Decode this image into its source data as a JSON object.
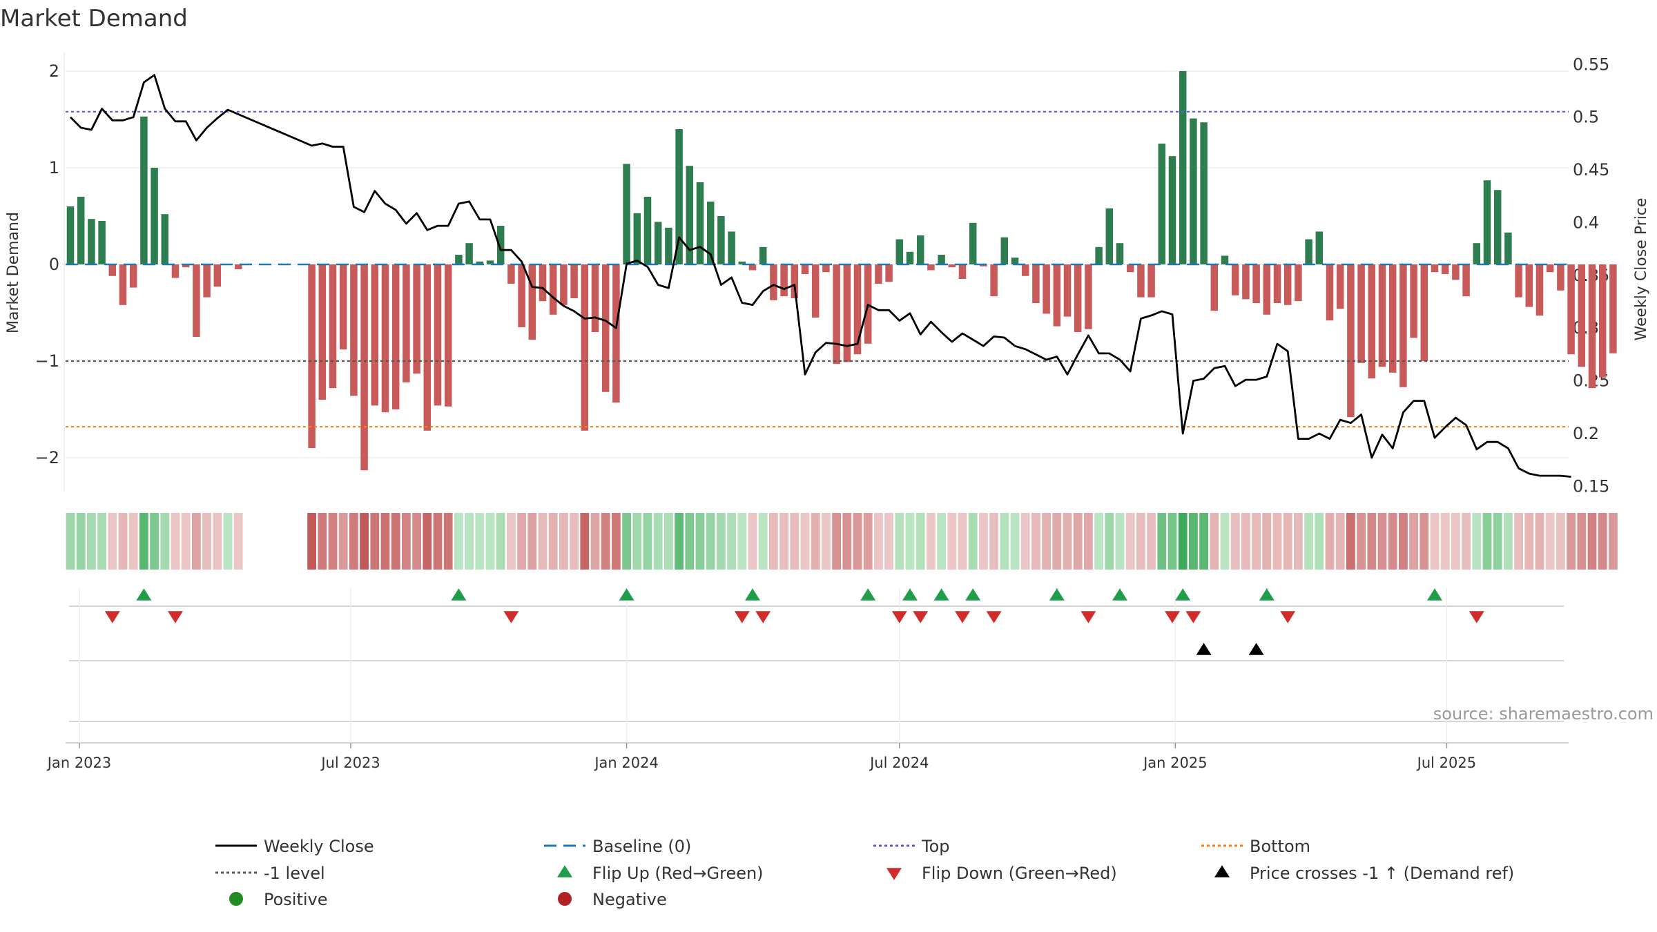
{
  "chart_data": {
    "type": "bar",
    "title": "Market Demand",
    "ylabel": "Market Demand",
    "y2label": "Weekly Close Price",
    "ylim": [
      -2.35,
      2.2
    ],
    "y2lim": [
      0.145,
      0.562
    ],
    "yticks": [
      2,
      1,
      0,
      -1,
      -2
    ],
    "yticklabels": [
      "2",
      "1",
      "0",
      "−1",
      "−2"
    ],
    "y2ticks": [
      0.55,
      0.5,
      0.45,
      0.4,
      0.35,
      0.3,
      0.25,
      0.2,
      0.15
    ],
    "y2ticklabels": [
      "0.55",
      "0.5",
      "0.45",
      "0.4",
      "0.35",
      "0.3",
      "0.25",
      "0.2",
      "0.15"
    ],
    "start_date": "2022-12-26",
    "week_count": 144,
    "xlabels": [
      {
        "date": "2023-01-01",
        "label": "Jan 2023"
      },
      {
        "date": "2023-07-01",
        "label": "Jul 2023"
      },
      {
        "date": "2024-01-01",
        "label": "Jan 2024"
      },
      {
        "date": "2024-07-01",
        "label": "Jul 2024"
      },
      {
        "date": "2025-01-01",
        "label": "Jan 2025"
      },
      {
        "date": "2025-07-01",
        "label": "Jul 2025"
      }
    ],
    "demand": [
      {
        "week": 0,
        "value": 0.6
      },
      {
        "week": 1,
        "value": 0.7
      },
      {
        "week": 2,
        "value": 0.47
      },
      {
        "week": 3,
        "value": 0.45
      },
      {
        "week": 4,
        "value": -0.12
      },
      {
        "week": 5,
        "value": -0.42
      },
      {
        "week": 6,
        "value": -0.24
      },
      {
        "week": 7,
        "value": 1.53
      },
      {
        "week": 8,
        "value": 1.0
      },
      {
        "week": 9,
        "value": 0.52
      },
      {
        "week": 10,
        "value": -0.14
      },
      {
        "week": 11,
        "value": -0.03
      },
      {
        "week": 12,
        "value": -0.75
      },
      {
        "week": 13,
        "value": -0.34
      },
      {
        "week": 14,
        "value": -0.23
      },
      {
        "week": 16,
        "value": -0.05
      },
      {
        "week": 23,
        "value": -1.9
      },
      {
        "week": 24,
        "value": -1.4
      },
      {
        "week": 25,
        "value": -1.28
      },
      {
        "week": 26,
        "value": -0.88
      },
      {
        "week": 27,
        "value": -1.36
      },
      {
        "week": 28,
        "value": -2.13
      },
      {
        "week": 29,
        "value": -1.46
      },
      {
        "week": 30,
        "value": -1.53
      },
      {
        "week": 31,
        "value": -1.5
      },
      {
        "week": 32,
        "value": -1.22
      },
      {
        "week": 33,
        "value": -1.13
      },
      {
        "week": 34,
        "value": -1.72
      },
      {
        "week": 35,
        "value": -1.46
      },
      {
        "week": 36,
        "value": -1.47
      },
      {
        "week": 37,
        "value": 0.1
      },
      {
        "week": 38,
        "value": 0.22
      },
      {
        "week": 39,
        "value": 0.03
      },
      {
        "week": 40,
        "value": 0.04
      },
      {
        "week": 41,
        "value": 0.4
      },
      {
        "week": 42,
        "value": -0.2
      },
      {
        "week": 43,
        "value": -0.65
      },
      {
        "week": 44,
        "value": -0.78
      },
      {
        "week": 45,
        "value": -0.38
      },
      {
        "week": 46,
        "value": -0.52
      },
      {
        "week": 47,
        "value": -0.42
      },
      {
        "week": 48,
        "value": -0.35
      },
      {
        "week": 49,
        "value": -1.72
      },
      {
        "week": 50,
        "value": -0.7
      },
      {
        "week": 51,
        "value": -1.32
      },
      {
        "week": 52,
        "value": -1.43
      },
      {
        "week": 53,
        "value": 1.04
      },
      {
        "week": 54,
        "value": 0.53
      },
      {
        "week": 55,
        "value": 0.7
      },
      {
        "week": 56,
        "value": 0.44
      },
      {
        "week": 57,
        "value": 0.38
      },
      {
        "week": 58,
        "value": 1.4
      },
      {
        "week": 59,
        "value": 1.02
      },
      {
        "week": 60,
        "value": 0.85
      },
      {
        "week": 61,
        "value": 0.65
      },
      {
        "week": 62,
        "value": 0.5
      },
      {
        "week": 63,
        "value": 0.34
      },
      {
        "week": 64,
        "value": 0.03
      },
      {
        "week": 65,
        "value": -0.06
      },
      {
        "week": 66,
        "value": 0.18
      },
      {
        "week": 67,
        "value": -0.37
      },
      {
        "week": 68,
        "value": -0.33
      },
      {
        "week": 69,
        "value": -0.35
      },
      {
        "week": 70,
        "value": -0.1
      },
      {
        "week": 71,
        "value": -0.55
      },
      {
        "week": 72,
        "value": -0.08
      },
      {
        "week": 73,
        "value": -1.03
      },
      {
        "week": 74,
        "value": -1.01
      },
      {
        "week": 75,
        "value": -0.93
      },
      {
        "week": 76,
        "value": -0.82
      },
      {
        "week": 77,
        "value": -0.2
      },
      {
        "week": 78,
        "value": -0.18
      },
      {
        "week": 79,
        "value": 0.26
      },
      {
        "week": 80,
        "value": 0.13
      },
      {
        "week": 81,
        "value": 0.3
      },
      {
        "week": 82,
        "value": -0.06
      },
      {
        "week": 83,
        "value": 0.1
      },
      {
        "week": 84,
        "value": -0.03
      },
      {
        "week": 85,
        "value": -0.15
      },
      {
        "week": 86,
        "value": 0.43
      },
      {
        "week": 87,
        "value": -0.02
      },
      {
        "week": 88,
        "value": -0.33
      },
      {
        "week": 89,
        "value": 0.28
      },
      {
        "week": 90,
        "value": 0.07
      },
      {
        "week": 91,
        "value": -0.12
      },
      {
        "week": 92,
        "value": -0.4
      },
      {
        "week": 93,
        "value": -0.51
      },
      {
        "week": 94,
        "value": -0.64
      },
      {
        "week": 95,
        "value": -0.54
      },
      {
        "week": 96,
        "value": -0.7
      },
      {
        "week": 97,
        "value": -0.67
      },
      {
        "week": 98,
        "value": 0.18
      },
      {
        "week": 99,
        "value": 0.58
      },
      {
        "week": 100,
        "value": 0.22
      },
      {
        "week": 101,
        "value": -0.08
      },
      {
        "week": 102,
        "value": -0.34
      },
      {
        "week": 103,
        "value": -0.34
      },
      {
        "week": 104,
        "value": 1.25
      },
      {
        "week": 105,
        "value": 1.12
      },
      {
        "week": 106,
        "value": 2.0
      },
      {
        "week": 107,
        "value": 1.51
      },
      {
        "week": 108,
        "value": 1.47
      },
      {
        "week": 109,
        "value": -0.48
      },
      {
        "week": 110,
        "value": 0.09
      },
      {
        "week": 111,
        "value": -0.32
      },
      {
        "week": 112,
        "value": -0.36
      },
      {
        "week": 113,
        "value": -0.4
      },
      {
        "week": 114,
        "value": -0.52
      },
      {
        "week": 115,
        "value": -0.4
      },
      {
        "week": 116,
        "value": -0.42
      },
      {
        "week": 117,
        "value": -0.38
      },
      {
        "week": 118,
        "value": 0.26
      },
      {
        "week": 119,
        "value": 0.34
      },
      {
        "week": 120,
        "value": -0.58
      },
      {
        "week": 121,
        "value": -0.46
      },
      {
        "week": 122,
        "value": -1.58
      },
      {
        "week": 123,
        "value": -1.02
      },
      {
        "week": 124,
        "value": -1.18
      },
      {
        "week": 125,
        "value": -1.06
      },
      {
        "week": 126,
        "value": -1.12
      },
      {
        "week": 127,
        "value": -1.27
      },
      {
        "week": 128,
        "value": -0.76
      },
      {
        "week": 129,
        "value": -1.0
      },
      {
        "week": 130,
        "value": -0.08
      },
      {
        "week": 131,
        "value": -0.1
      },
      {
        "week": 132,
        "value": -0.16
      },
      {
        "week": 133,
        "value": -0.33
      },
      {
        "week": 134,
        "value": 0.22
      },
      {
        "week": 135,
        "value": 0.87
      },
      {
        "week": 136,
        "value": 0.77
      },
      {
        "week": 137,
        "value": 0.33
      },
      {
        "week": 138,
        "value": -0.34
      },
      {
        "week": 139,
        "value": -0.44
      },
      {
        "week": 140,
        "value": -0.53
      },
      {
        "week": 141,
        "value": -0.08
      },
      {
        "week": 142,
        "value": -0.27
      },
      {
        "week": 143,
        "value": -0.93
      }
    ],
    "extra_bars": [
      {
        "week": 144,
        "value": -1.06
      },
      {
        "week": 145,
        "value": -1.28
      },
      {
        "week": 146,
        "value": -1.17
      },
      {
        "week": 147,
        "value": -0.92
      }
    ],
    "close": [
      [
        0,
        0.5
      ],
      [
        1,
        0.49
      ],
      [
        2,
        0.488
      ],
      [
        3,
        0.508
      ],
      [
        4,
        0.497
      ],
      [
        5,
        0.497
      ],
      [
        6,
        0.5
      ],
      [
        7,
        0.533
      ],
      [
        8,
        0.54
      ],
      [
        9,
        0.508
      ],
      [
        10,
        0.496
      ],
      [
        11,
        0.496
      ],
      [
        12,
        0.478
      ],
      [
        13,
        0.49
      ],
      [
        14,
        0.499
      ],
      [
        15,
        0.507
      ],
      [
        23,
        0.473
      ],
      [
        24,
        0.475
      ],
      [
        25,
        0.472
      ],
      [
        26,
        0.472
      ],
      [
        27,
        0.415
      ],
      [
        28,
        0.41
      ],
      [
        29,
        0.43
      ],
      [
        30,
        0.418
      ],
      [
        31,
        0.412
      ],
      [
        32,
        0.399
      ],
      [
        33,
        0.409
      ],
      [
        34,
        0.393
      ],
      [
        35,
        0.397
      ],
      [
        36,
        0.397
      ],
      [
        37,
        0.418
      ],
      [
        38,
        0.42
      ],
      [
        39,
        0.403
      ],
      [
        40,
        0.403
      ],
      [
        41,
        0.374
      ],
      [
        42,
        0.374
      ],
      [
        43,
        0.363
      ],
      [
        44,
        0.339
      ],
      [
        45,
        0.338
      ],
      [
        46,
        0.329
      ],
      [
        47,
        0.321
      ],
      [
        48,
        0.316
      ],
      [
        49,
        0.309
      ],
      [
        50,
        0.31
      ],
      [
        51,
        0.307
      ],
      [
        52,
        0.3
      ],
      [
        53,
        0.361
      ],
      [
        54,
        0.364
      ],
      [
        55,
        0.358
      ],
      [
        56,
        0.341
      ],
      [
        57,
        0.338
      ],
      [
        58,
        0.386
      ],
      [
        59,
        0.374
      ],
      [
        60,
        0.377
      ],
      [
        61,
        0.37
      ],
      [
        62,
        0.341
      ],
      [
        63,
        0.348
      ],
      [
        64,
        0.324
      ],
      [
        65,
        0.322
      ],
      [
        66,
        0.335
      ],
      [
        67,
        0.341
      ],
      [
        68,
        0.337
      ],
      [
        69,
        0.341
      ],
      [
        70,
        0.256
      ],
      [
        71,
        0.277
      ],
      [
        72,
        0.286
      ],
      [
        73,
        0.285
      ],
      [
        74,
        0.283
      ],
      [
        75,
        0.285
      ],
      [
        76,
        0.322
      ],
      [
        77,
        0.317
      ],
      [
        78,
        0.317
      ],
      [
        79,
        0.307
      ],
      [
        80,
        0.314
      ],
      [
        81,
        0.294
      ],
      [
        82,
        0.306
      ],
      [
        83,
        0.296
      ],
      [
        84,
        0.287
      ],
      [
        85,
        0.295
      ],
      [
        86,
        0.289
      ],
      [
        87,
        0.283
      ],
      [
        88,
        0.292
      ],
      [
        89,
        0.291
      ],
      [
        90,
        0.283
      ],
      [
        91,
        0.28
      ],
      [
        92,
        0.275
      ],
      [
        93,
        0.27
      ],
      [
        94,
        0.273
      ],
      [
        95,
        0.256
      ],
      [
        96,
        0.275
      ],
      [
        97,
        0.293
      ],
      [
        98,
        0.276
      ],
      [
        99,
        0.276
      ],
      [
        100,
        0.27
      ],
      [
        101,
        0.259
      ],
      [
        102,
        0.309
      ],
      [
        103,
        0.312
      ],
      [
        104,
        0.316
      ],
      [
        105,
        0.313
      ],
      [
        106,
        0.2
      ],
      [
        107,
        0.25
      ],
      [
        108,
        0.252
      ],
      [
        109,
        0.262
      ],
      [
        110,
        0.264
      ],
      [
        111,
        0.245
      ],
      [
        112,
        0.251
      ],
      [
        113,
        0.251
      ],
      [
        114,
        0.254
      ],
      [
        115,
        0.285
      ],
      [
        116,
        0.278
      ],
      [
        117,
        0.195
      ],
      [
        118,
        0.195
      ],
      [
        119,
        0.2
      ],
      [
        120,
        0.195
      ],
      [
        121,
        0.213
      ],
      [
        122,
        0.21
      ],
      [
        123,
        0.218
      ],
      [
        124,
        0.177
      ],
      [
        125,
        0.199
      ],
      [
        126,
        0.186
      ],
      [
        127,
        0.22
      ],
      [
        128,
        0.231
      ],
      [
        129,
        0.231
      ],
      [
        130,
        0.196
      ],
      [
        131,
        0.206
      ],
      [
        132,
        0.215
      ],
      [
        133,
        0.208
      ],
      [
        134,
        0.185
      ],
      [
        135,
        0.192
      ],
      [
        136,
        0.192
      ],
      [
        137,
        0.186
      ],
      [
        138,
        0.167
      ],
      [
        139,
        0.162
      ],
      [
        140,
        0.16
      ],
      [
        141,
        0.16
      ],
      [
        142,
        0.16
      ],
      [
        143,
        0.159
      ]
    ],
    "heatmap_gap": [
      17,
      22
    ],
    "flip_up_weeks": [
      7,
      37,
      53,
      65,
      76,
      80,
      83,
      86,
      94,
      100,
      106,
      114,
      130
    ],
    "flip_down_weeks": [
      4,
      10,
      42,
      64,
      66,
      79,
      81,
      85,
      88,
      97,
      105,
      107,
      116,
      134
    ],
    "cross_weeks": [
      108,
      113
    ],
    "reference_lines": [
      {
        "name": "Top",
        "value": 1.58,
        "color": "#5b5bd6"
      },
      {
        "name": "Bottom",
        "value": -1.68,
        "color": "#ff7f0e"
      },
      {
        "name": "-1 level",
        "value": -1.0,
        "color": "#555555"
      },
      {
        "name": "Baseline (0)",
        "value": 0.0,
        "color": "#1f77b4"
      }
    ],
    "colors": {
      "positive_bar": "#2e7d4f",
      "negative_bar": "#c85a5a",
      "flip_up": "#1f9d4a",
      "flip_down": "#d22b2b",
      "cross": "#000000",
      "positive_dot": "#228b22",
      "negative_dot": "#b22222",
      "close_line": "#000000"
    },
    "legend": [
      {
        "key": "close",
        "label": "Weekly Close"
      },
      {
        "key": "baseline",
        "label": "Baseline (0)"
      },
      {
        "key": "top",
        "label": "Top"
      },
      {
        "key": "bottom",
        "label": "Bottom"
      },
      {
        "key": "minus1",
        "label": "-1 level"
      },
      {
        "key": "flip_up",
        "label": "Flip Up (Red→Green)"
      },
      {
        "key": "flip_down",
        "label": "Flip Down (Green→Red)"
      },
      {
        "key": "cross",
        "label": "Price crosses -1 ↑ (Demand ref)"
      },
      {
        "key": "positive",
        "label": "Positive"
      },
      {
        "key": "negative",
        "label": "Negative"
      }
    ],
    "source": "source: sharemaestro.com"
  }
}
